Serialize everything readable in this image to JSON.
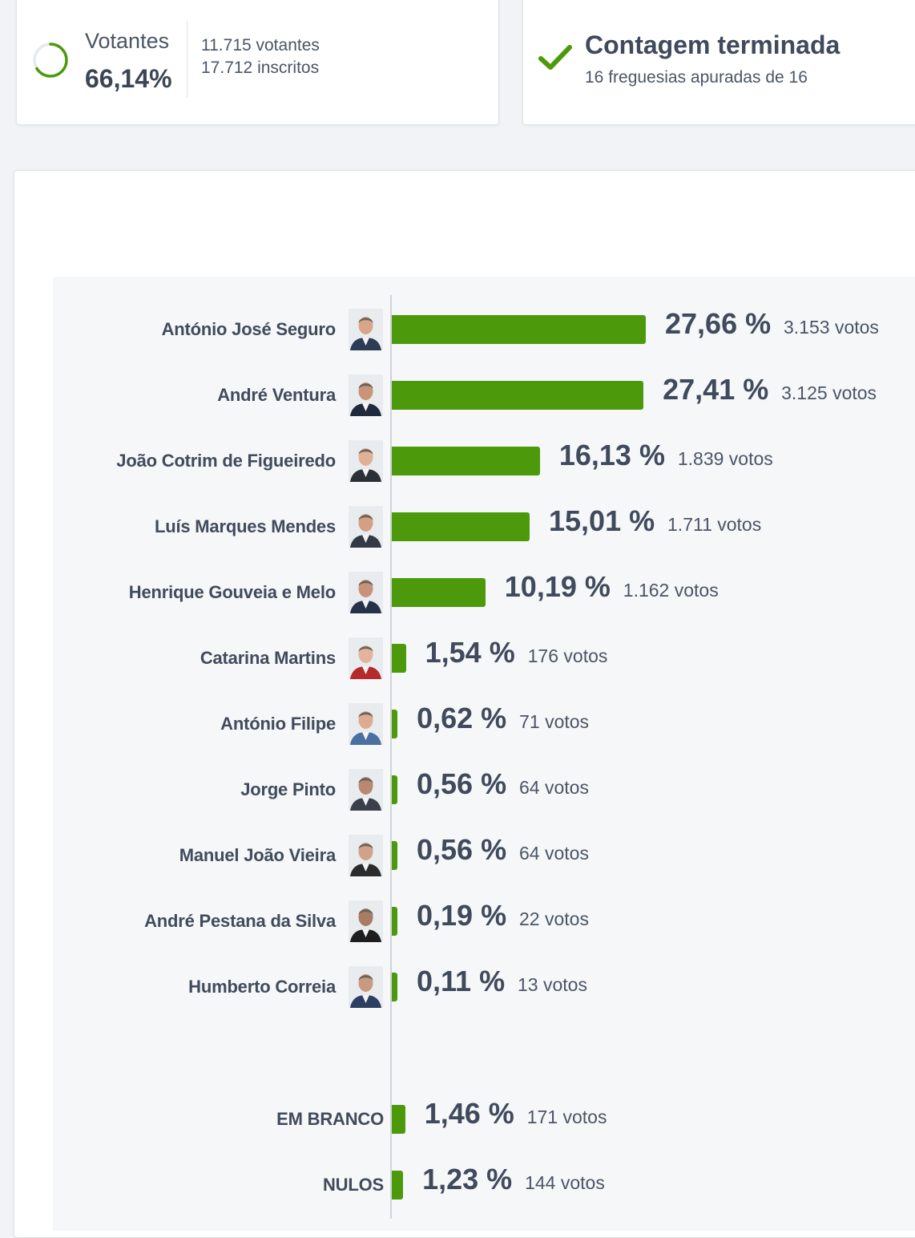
{
  "turnout": {
    "label": "Votantes",
    "percent": "66,14%",
    "percent_value": 66.14,
    "voters": "11.715 votantes",
    "registered": "17.712 inscritos"
  },
  "status": {
    "title": "Contagem terminada",
    "subtitle": "16 freguesias apuradas de 16"
  },
  "colors": {
    "bar": "#4c9a0c",
    "check": "#4c9a0c",
    "text": "#3f4a5c"
  },
  "chart_data": {
    "type": "bar",
    "orientation": "horizontal",
    "max_percent": 27.66,
    "candidates": [
      {
        "name": "António José Seguro",
        "percent": 27.66,
        "percent_label": "27,66 %",
        "votes": "3.153 votos"
      },
      {
        "name": "André Ventura",
        "percent": 27.41,
        "percent_label": "27,41 %",
        "votes": "3.125 votos"
      },
      {
        "name": "João Cotrim de Figueiredo",
        "percent": 16.13,
        "percent_label": "16,13 %",
        "votes": "1.839 votos"
      },
      {
        "name": "Luís Marques Mendes",
        "percent": 15.01,
        "percent_label": "15,01 %",
        "votes": "1.711 votos"
      },
      {
        "name": "Henrique Gouveia e Melo",
        "percent": 10.19,
        "percent_label": "10,19 %",
        "votes": "1.162 votos"
      },
      {
        "name": "Catarina Martins",
        "percent": 1.54,
        "percent_label": "1,54 %",
        "votes": "176 votos"
      },
      {
        "name": "António Filipe",
        "percent": 0.62,
        "percent_label": "0,62 %",
        "votes": "71 votos"
      },
      {
        "name": "Jorge Pinto",
        "percent": 0.56,
        "percent_label": "0,56 %",
        "votes": "64 votos"
      },
      {
        "name": "Manuel João Vieira",
        "percent": 0.56,
        "percent_label": "0,56 %",
        "votes": "64 votos"
      },
      {
        "name": "André Pestana da Silva",
        "percent": 0.19,
        "percent_label": "0,19 %",
        "votes": "22 votos"
      },
      {
        "name": "Humberto Correia",
        "percent": 0.11,
        "percent_label": "0,11 %",
        "votes": "13 votos"
      }
    ],
    "other": [
      {
        "name": "EM BRANCO",
        "percent": 1.46,
        "percent_label": "1,46 %",
        "votes": "171 votos"
      },
      {
        "name": "NULOS",
        "percent": 1.23,
        "percent_label": "1,23 %",
        "votes": "144 votos"
      }
    ]
  }
}
